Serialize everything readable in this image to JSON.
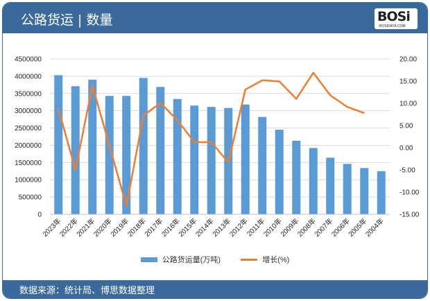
{
  "header": {
    "title": "公路货运 | 数量",
    "logo_text": "BOSI",
    "logo_sub": "BOSIDATA.COM"
  },
  "footer": {
    "source": "数据来源：统计局、博思数据整理"
  },
  "colors": {
    "header_bg": "#3a6a9c",
    "bar": "#5b9bd5",
    "line": "#ed7d31"
  },
  "chart_data": {
    "type": "bar+line",
    "categories": [
      "2023年",
      "2022年",
      "2021年",
      "2020年",
      "2019年",
      "2018年",
      "2017年",
      "2016年",
      "2015年",
      "2014年",
      "2013年",
      "2012年",
      "2011年",
      "2010年",
      "2009年",
      "2008年",
      "2007年",
      "2006年",
      "2005年",
      "2004年"
    ],
    "series": [
      {
        "name": "公路货运量(万吨)",
        "type": "bar",
        "axis": "left",
        "values": [
          4030000,
          3710000,
          3900000,
          3430000,
          3430000,
          3950000,
          3690000,
          3340000,
          3150000,
          3110000,
          3080000,
          3180000,
          2820000,
          2450000,
          2130000,
          1920000,
          1640000,
          1460000,
          1340000,
          1250000
        ]
      },
      {
        "name": "增长(%)",
        "type": "line",
        "axis": "right",
        "values": [
          8.75,
          -5.0,
          14.0,
          0.5,
          -13.1,
          7.2,
          10.1,
          6.2,
          1.25,
          1.25,
          -3.3,
          13.1,
          15.2,
          14.95,
          11.0,
          16.9,
          11.8,
          9.2,
          7.8,
          null
        ]
      }
    ],
    "y_left": {
      "range": [
        0,
        4500000
      ],
      "ticks": [
        "0",
        "500000",
        "1000000",
        "1500000",
        "2000000",
        "2500000",
        "3000000",
        "3500000",
        "4000000",
        "4500000"
      ]
    },
    "y_right": {
      "range": [
        -15,
        20
      ],
      "ticks": [
        "-15.00",
        "-10.00",
        "-5.00",
        "0.00",
        "5.00",
        "10.00",
        "15.00",
        "20.00"
      ]
    },
    "grid": true,
    "legend_position": "bottom"
  }
}
